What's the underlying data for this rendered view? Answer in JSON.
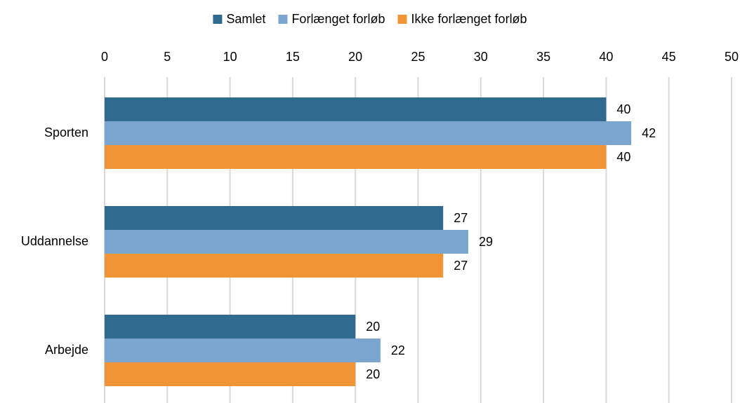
{
  "chart_data": {
    "type": "bar",
    "orientation": "horizontal",
    "categories": [
      "Sporten",
      "Uddannelse",
      "Arbejde"
    ],
    "series": [
      {
        "name": "Samlet",
        "color": "#316a8f",
        "values": [
          40,
          27,
          20
        ]
      },
      {
        "name": "Forlænget forløb",
        "color": "#7aa6d0",
        "values": [
          42,
          29,
          22
        ]
      },
      {
        "name": "Ikke forlænget forløb",
        "color": "#ef9535",
        "values": [
          40,
          27,
          20
        ]
      }
    ],
    "xlim": [
      0,
      50
    ],
    "xticks": [
      0,
      5,
      10,
      15,
      20,
      25,
      30,
      35,
      40,
      45,
      50
    ],
    "grid": true,
    "legend": "top",
    "data_labels": true
  }
}
